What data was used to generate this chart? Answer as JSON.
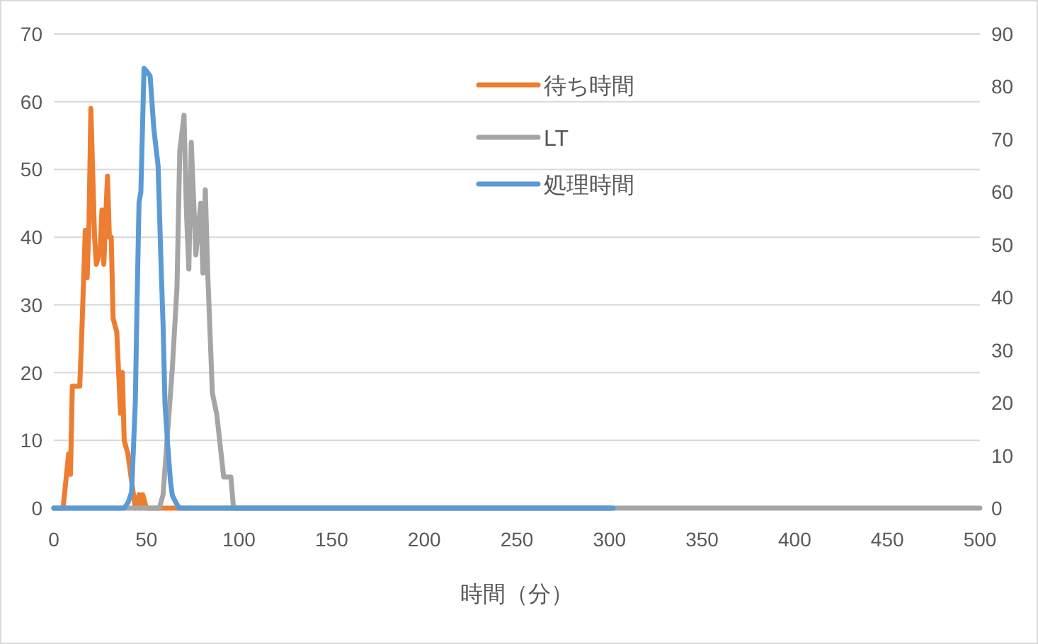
{
  "chart_data": {
    "type": "line",
    "xlabel": "時間（分）",
    "xlim": [
      0,
      500
    ],
    "xticks": [
      0,
      50,
      100,
      150,
      200,
      250,
      300,
      350,
      400,
      450,
      500
    ],
    "ylim": [
      0,
      70
    ],
    "yticks": [
      0,
      10,
      20,
      30,
      40,
      50,
      60,
      70
    ],
    "y2lim": [
      0,
      90
    ],
    "y2ticks": [
      0,
      10,
      20,
      30,
      40,
      50,
      60,
      70,
      80,
      90
    ],
    "grid": "y",
    "legend": "top",
    "line_style": "solid",
    "marker": "none",
    "series": [
      {
        "name": "待ち時間",
        "color": "#ed7d31",
        "x": [
          0,
          5,
          8,
          9,
          10,
          12,
          14,
          15,
          17,
          18,
          19,
          20,
          22,
          23,
          25,
          26,
          27,
          28,
          29,
          30,
          31,
          32,
          34,
          35,
          36,
          37,
          38,
          40,
          42,
          44,
          46,
          47,
          48,
          50,
          300
        ],
        "values": [
          0,
          0,
          8,
          5,
          18,
          18,
          18,
          25,
          41,
          34,
          42,
          59,
          40,
          36,
          38,
          44,
          36,
          43,
          49,
          40,
          40,
          28,
          26,
          20,
          14,
          20,
          10,
          8,
          4,
          0,
          2,
          0,
          2,
          0,
          0
        ]
      },
      {
        "name": "LT",
        "color": "#a5a5a5",
        "x": [
          0,
          57,
          59,
          64,
          66.5,
          68,
          70.3,
          71.6,
          72.9,
          74.2,
          76.7,
          79.3,
          80.5,
          81.8,
          83.1,
          85.6,
          88,
          91.7,
          95.6,
          97,
          500
        ],
        "values": [
          0,
          0,
          2,
          20.7,
          32.6,
          52.7,
          58,
          43.7,
          35.3,
          54,
          37.4,
          45,
          34.7,
          47,
          34.7,
          17,
          13.8,
          4.6,
          4.6,
          0,
          0
        ]
      },
      {
        "name": "処理時間",
        "color": "#5b9bd5",
        "axis": "y2",
        "x": [
          0,
          38,
          40,
          42,
          44,
          45,
          46,
          47,
          48.7,
          50,
          52,
          54,
          56.3,
          58,
          59,
          60,
          61.4,
          63,
          64,
          66,
          67.8,
          302
        ],
        "values": [
          0,
          0,
          1,
          3,
          20,
          40,
          58,
          60,
          83.5,
          83,
          82,
          72,
          65,
          45,
          34.7,
          20,
          12.4,
          5,
          2.4,
          1,
          0,
          0
        ]
      }
    ]
  }
}
